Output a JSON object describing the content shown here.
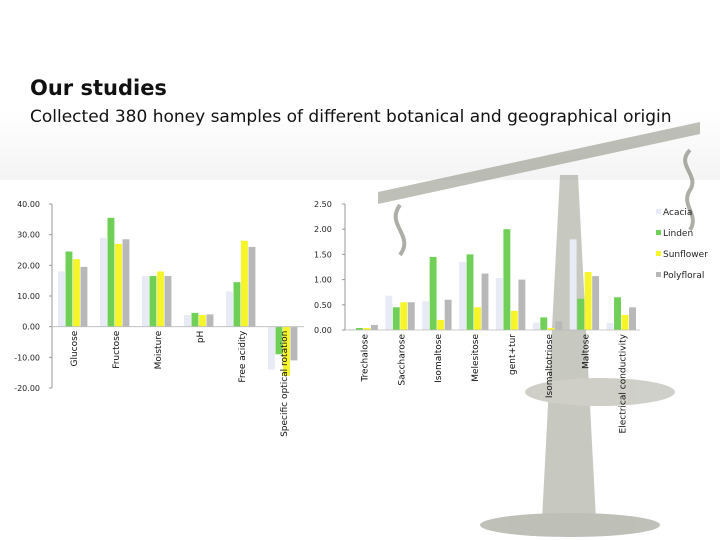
{
  "heading": "Our studies",
  "subheading": "Collected 380 honey samples of different botanical and geographical origin",
  "colors": {
    "Acacia": "#e8eaf6",
    "Linden": "#6fcf57",
    "Sunflower": "#f5f52a",
    "Polyfloral": "#b8b8b8",
    "scale": "#7a7d6e"
  },
  "chart_data": [
    {
      "type": "bar",
      "categories": [
        "Glucose",
        "Fructose",
        "Moisture",
        "pH",
        "Free acidity",
        "Specific optical rotation"
      ],
      "series": [
        {
          "name": "Acacia",
          "values": [
            18,
            29,
            16.5,
            3.8,
            11.5,
            -14
          ]
        },
        {
          "name": "Linden",
          "values": [
            24.5,
            35.5,
            16.5,
            4.5,
            14.5,
            -9
          ]
        },
        {
          "name": "Sunflower",
          "values": [
            22,
            27,
            18,
            3.8,
            28,
            -16
          ]
        },
        {
          "name": "Polyfloral",
          "values": [
            19.5,
            28.5,
            16.5,
            4,
            26,
            -11
          ]
        }
      ],
      "ylim": [
        -20,
        40
      ],
      "yticks": [
        "40.00",
        "30.00",
        "20.00",
        "10.00",
        "0.00",
        "-10.00",
        "-20.00"
      ],
      "ytick_values": [
        40,
        30,
        20,
        10,
        0,
        -10,
        -20
      ]
    },
    {
      "type": "bar",
      "categories": [
        "Trechalose",
        "Saccharose",
        "Isomaltose",
        "Melesitose",
        "gent+tur",
        "Isomaltotriose",
        "Maltose",
        "Electrical conductivity"
      ],
      "series": [
        {
          "name": "Acacia",
          "values": [
            0.02,
            0.68,
            0.57,
            1.35,
            1.03,
            0.15,
            1.8,
            0.14
          ]
        },
        {
          "name": "Linden",
          "values": [
            0.04,
            0.45,
            1.45,
            1.5,
            2.0,
            0.25,
            0.62,
            0.65
          ]
        },
        {
          "name": "Sunflower",
          "values": [
            0.04,
            0.55,
            0.2,
            0.45,
            0.38,
            0.04,
            1.15,
            0.3
          ]
        },
        {
          "name": "Polyfloral",
          "values": [
            0.1,
            0.55,
            0.6,
            1.12,
            1.0,
            0.17,
            1.07,
            0.45
          ]
        }
      ],
      "ylim": [
        0,
        2.5
      ],
      "yticks": [
        "2.50",
        "2.00",
        "1.50",
        "1.00",
        "0.50",
        "0.00"
      ],
      "ytick_values": [
        2.5,
        2.0,
        1.5,
        1.0,
        0.5,
        0.0
      ]
    }
  ],
  "legend": [
    "Acacia",
    "Linden",
    "Sunflower",
    "Polyfloral"
  ]
}
